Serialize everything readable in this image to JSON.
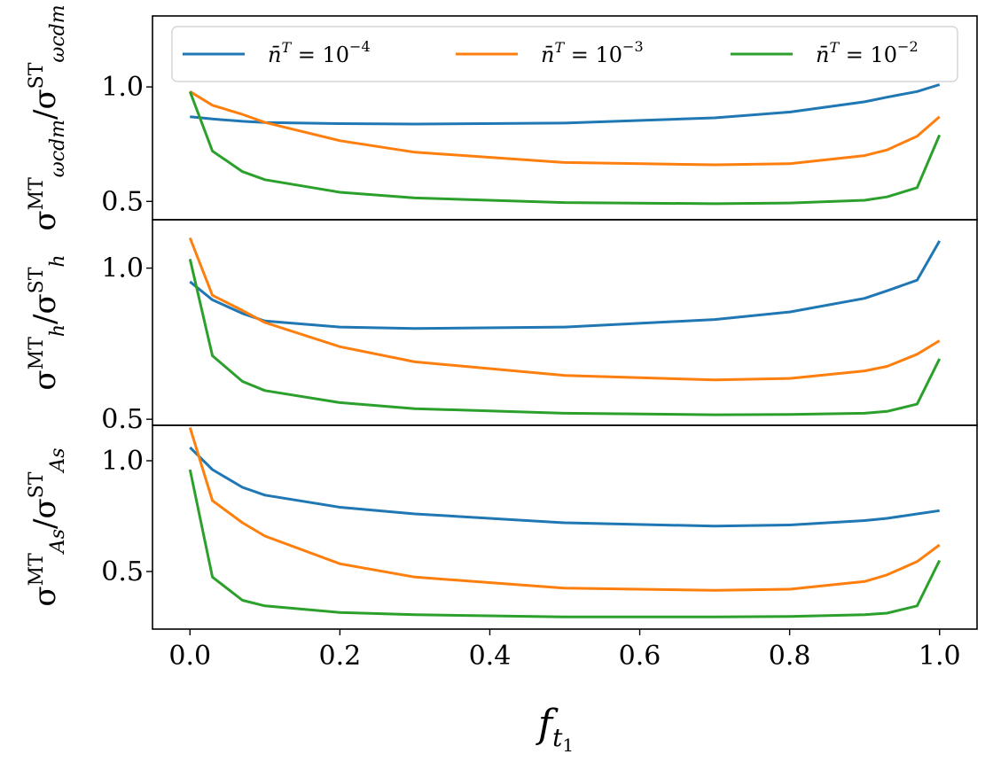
{
  "chart_data": {
    "type": "line",
    "xlabel": "f",
    "xlabel_sub": "t",
    "xlabel_subsub": "1",
    "x": [
      0.0,
      0.03,
      0.07,
      0.1,
      0.2,
      0.3,
      0.5,
      0.7,
      0.8,
      0.9,
      0.93,
      0.97,
      1.0
    ],
    "xlim": [
      -0.05,
      1.05
    ],
    "xticks": [
      0.0,
      0.2,
      0.4,
      0.6,
      0.8,
      1.0
    ],
    "xtick_labels": [
      "0.0",
      "0.2",
      "0.4",
      "0.6",
      "0.8",
      "1.0"
    ],
    "legend": {
      "placement": "top",
      "entries": [
        {
          "label": "n̄",
          "sup": "T",
          "eq": " = 10",
          "exp": "−4",
          "color": "#1f77b4"
        },
        {
          "label": "n̄",
          "sup": "T",
          "eq": " = 10",
          "exp": "−3",
          "color": "#ff7f0e"
        },
        {
          "label": "n̄",
          "sup": "T",
          "eq": " = 10",
          "exp": "−2",
          "color": "#2ca02c"
        }
      ]
    },
    "panels": [
      {
        "ylabel": {
          "pre": "σ",
          "sup1": "MT",
          "sub1": "ωcdm",
          "mid": "/σ",
          "sup2": "ST",
          "sub2": "ωcdm"
        },
        "ylim": [
          0.42,
          1.31
        ],
        "yticks": [
          0.5,
          1.0
        ],
        "ytick_labels": [
          "0.5",
          "1.0"
        ],
        "series": [
          {
            "name": "n̄^T = 10^-4",
            "color": "#1f77b4",
            "values": [
              0.87,
              0.86,
              0.85,
              0.845,
              0.84,
              0.838,
              0.842,
              0.865,
              0.89,
              0.935,
              0.955,
              0.98,
              1.01
            ]
          },
          {
            "name": "n̄^T = 10^-3",
            "color": "#ff7f0e",
            "values": [
              0.98,
              0.92,
              0.88,
              0.845,
              0.765,
              0.715,
              0.67,
              0.66,
              0.665,
              0.7,
              0.725,
              0.785,
              0.87
            ]
          },
          {
            "name": "n̄^T = 10^-2",
            "color": "#2ca02c",
            "values": [
              0.98,
              0.72,
              0.63,
              0.595,
              0.54,
              0.515,
              0.495,
              0.49,
              0.493,
              0.505,
              0.52,
              0.56,
              0.79
            ]
          }
        ]
      },
      {
        "ylabel": {
          "pre": "σ",
          "sup1": "MT",
          "sub1": "h",
          "mid": "/σ",
          "sup2": "ST",
          "sub2": "h"
        },
        "ylim": [
          0.48,
          1.16
        ],
        "yticks": [
          0.5,
          1.0
        ],
        "ytick_labels": [
          "0.5",
          "1.0"
        ],
        "series": [
          {
            "name": "n̄^T = 10^-4",
            "color": "#1f77b4",
            "values": [
              0.955,
              0.895,
              0.85,
              0.825,
              0.805,
              0.8,
              0.805,
              0.83,
              0.855,
              0.9,
              0.925,
              0.96,
              1.09
            ]
          },
          {
            "name": "n̄^T = 10^-3",
            "color": "#ff7f0e",
            "values": [
              1.1,
              0.91,
              0.86,
              0.82,
              0.74,
              0.69,
              0.645,
              0.63,
              0.635,
              0.66,
              0.675,
              0.715,
              0.76
            ]
          },
          {
            "name": "n̄^T = 10^-2",
            "color": "#2ca02c",
            "values": [
              1.03,
              0.71,
              0.625,
              0.595,
              0.555,
              0.535,
              0.52,
              0.515,
              0.516,
              0.52,
              0.526,
              0.55,
              0.7
            ]
          }
        ]
      },
      {
        "ylabel": {
          "pre": "σ",
          "sup1": "MT",
          "sub1": "As",
          "mid": "/σ",
          "sup2": "ST",
          "sub2": "As"
        },
        "ylim": [
          0.24,
          1.16
        ],
        "yticks": [
          0.5,
          1.0
        ],
        "ytick_labels": [
          "0.5",
          "1.0"
        ],
        "series": [
          {
            "name": "n̄^T = 10^-4",
            "color": "#1f77b4",
            "values": [
              1.06,
              0.96,
              0.88,
              0.845,
              0.79,
              0.76,
              0.72,
              0.705,
              0.71,
              0.73,
              0.74,
              0.76,
              0.775
            ]
          },
          {
            "name": "n̄^T = 10^-3",
            "color": "#ff7f0e",
            "values": [
              1.15,
              0.82,
              0.72,
              0.66,
              0.535,
              0.475,
              0.425,
              0.415,
              0.42,
              0.455,
              0.485,
              0.545,
              0.62
            ]
          },
          {
            "name": "n̄^T = 10^-2",
            "color": "#2ca02c",
            "values": [
              0.96,
              0.475,
              0.37,
              0.345,
              0.315,
              0.305,
              0.295,
              0.295,
              0.297,
              0.305,
              0.312,
              0.345,
              0.55
            ]
          }
        ]
      }
    ]
  }
}
